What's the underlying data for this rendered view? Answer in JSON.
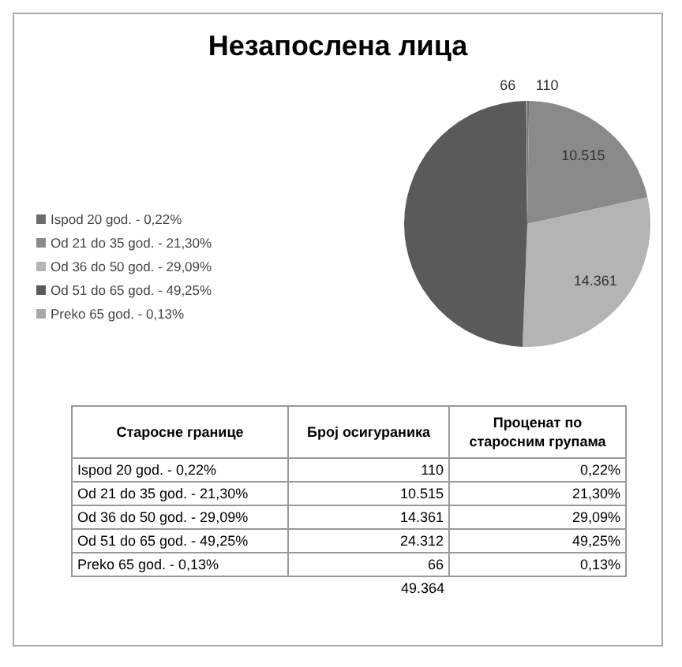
{
  "chart_data": {
    "type": "pie",
    "title": "Незапослена лица",
    "categories": [
      "Ispod 20 god.  - 0,22%",
      "Od 21 do 35 god. - 21,30%",
      "Od 36 do 50 god. - 29,09%",
      "Od 51 do 65 god. - 49,25%",
      "Preko 65 god. - 0,13%"
    ],
    "values": [
      110,
      10515,
      14361,
      24312,
      66
    ],
    "colors": [
      "#6e6e6e",
      "#8a8a8a",
      "#b4b4b4",
      "#5a5a5a",
      "#a8a8a8"
    ],
    "value_labels": [
      "110",
      "10.515",
      "14.361",
      null,
      "66"
    ],
    "data_labels": true,
    "legend": "left",
    "annotations": [
      "Старосне границе",
      "Број осигураника",
      "Проценат по старосним групама",
      "0,22%",
      "21,30%",
      "29,09%",
      "49,25%",
      "0,13%",
      "110",
      "10.515",
      "14.361",
      "24.312",
      "66"
    ],
    "totals": [
      "49.364"
    ]
  }
}
